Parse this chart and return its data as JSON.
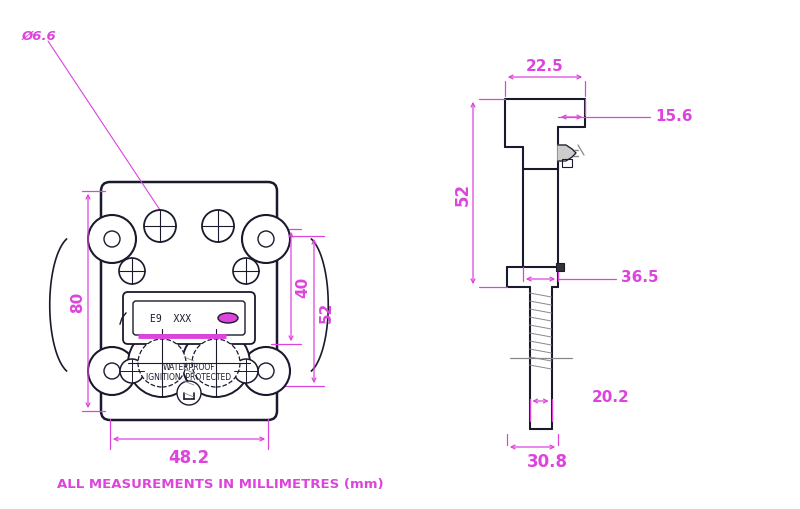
{
  "bg_color": "#ffffff",
  "lc": "#1a1a2e",
  "dc": "#dd44dd",
  "gc": "#888888",
  "fig_width": 8.0,
  "fig_height": 5.1,
  "title": "ALL MEASUREMENTS IN MILLIMETRES (mm)",
  "labels": {
    "dia": "Ø6.6",
    "w80": "80",
    "w48": "48.2",
    "h40": "40",
    "h52": "52",
    "d22": "22.5",
    "d15": "15.6",
    "d36": "36.5",
    "d20": "20.2",
    "d30": "30.8"
  }
}
